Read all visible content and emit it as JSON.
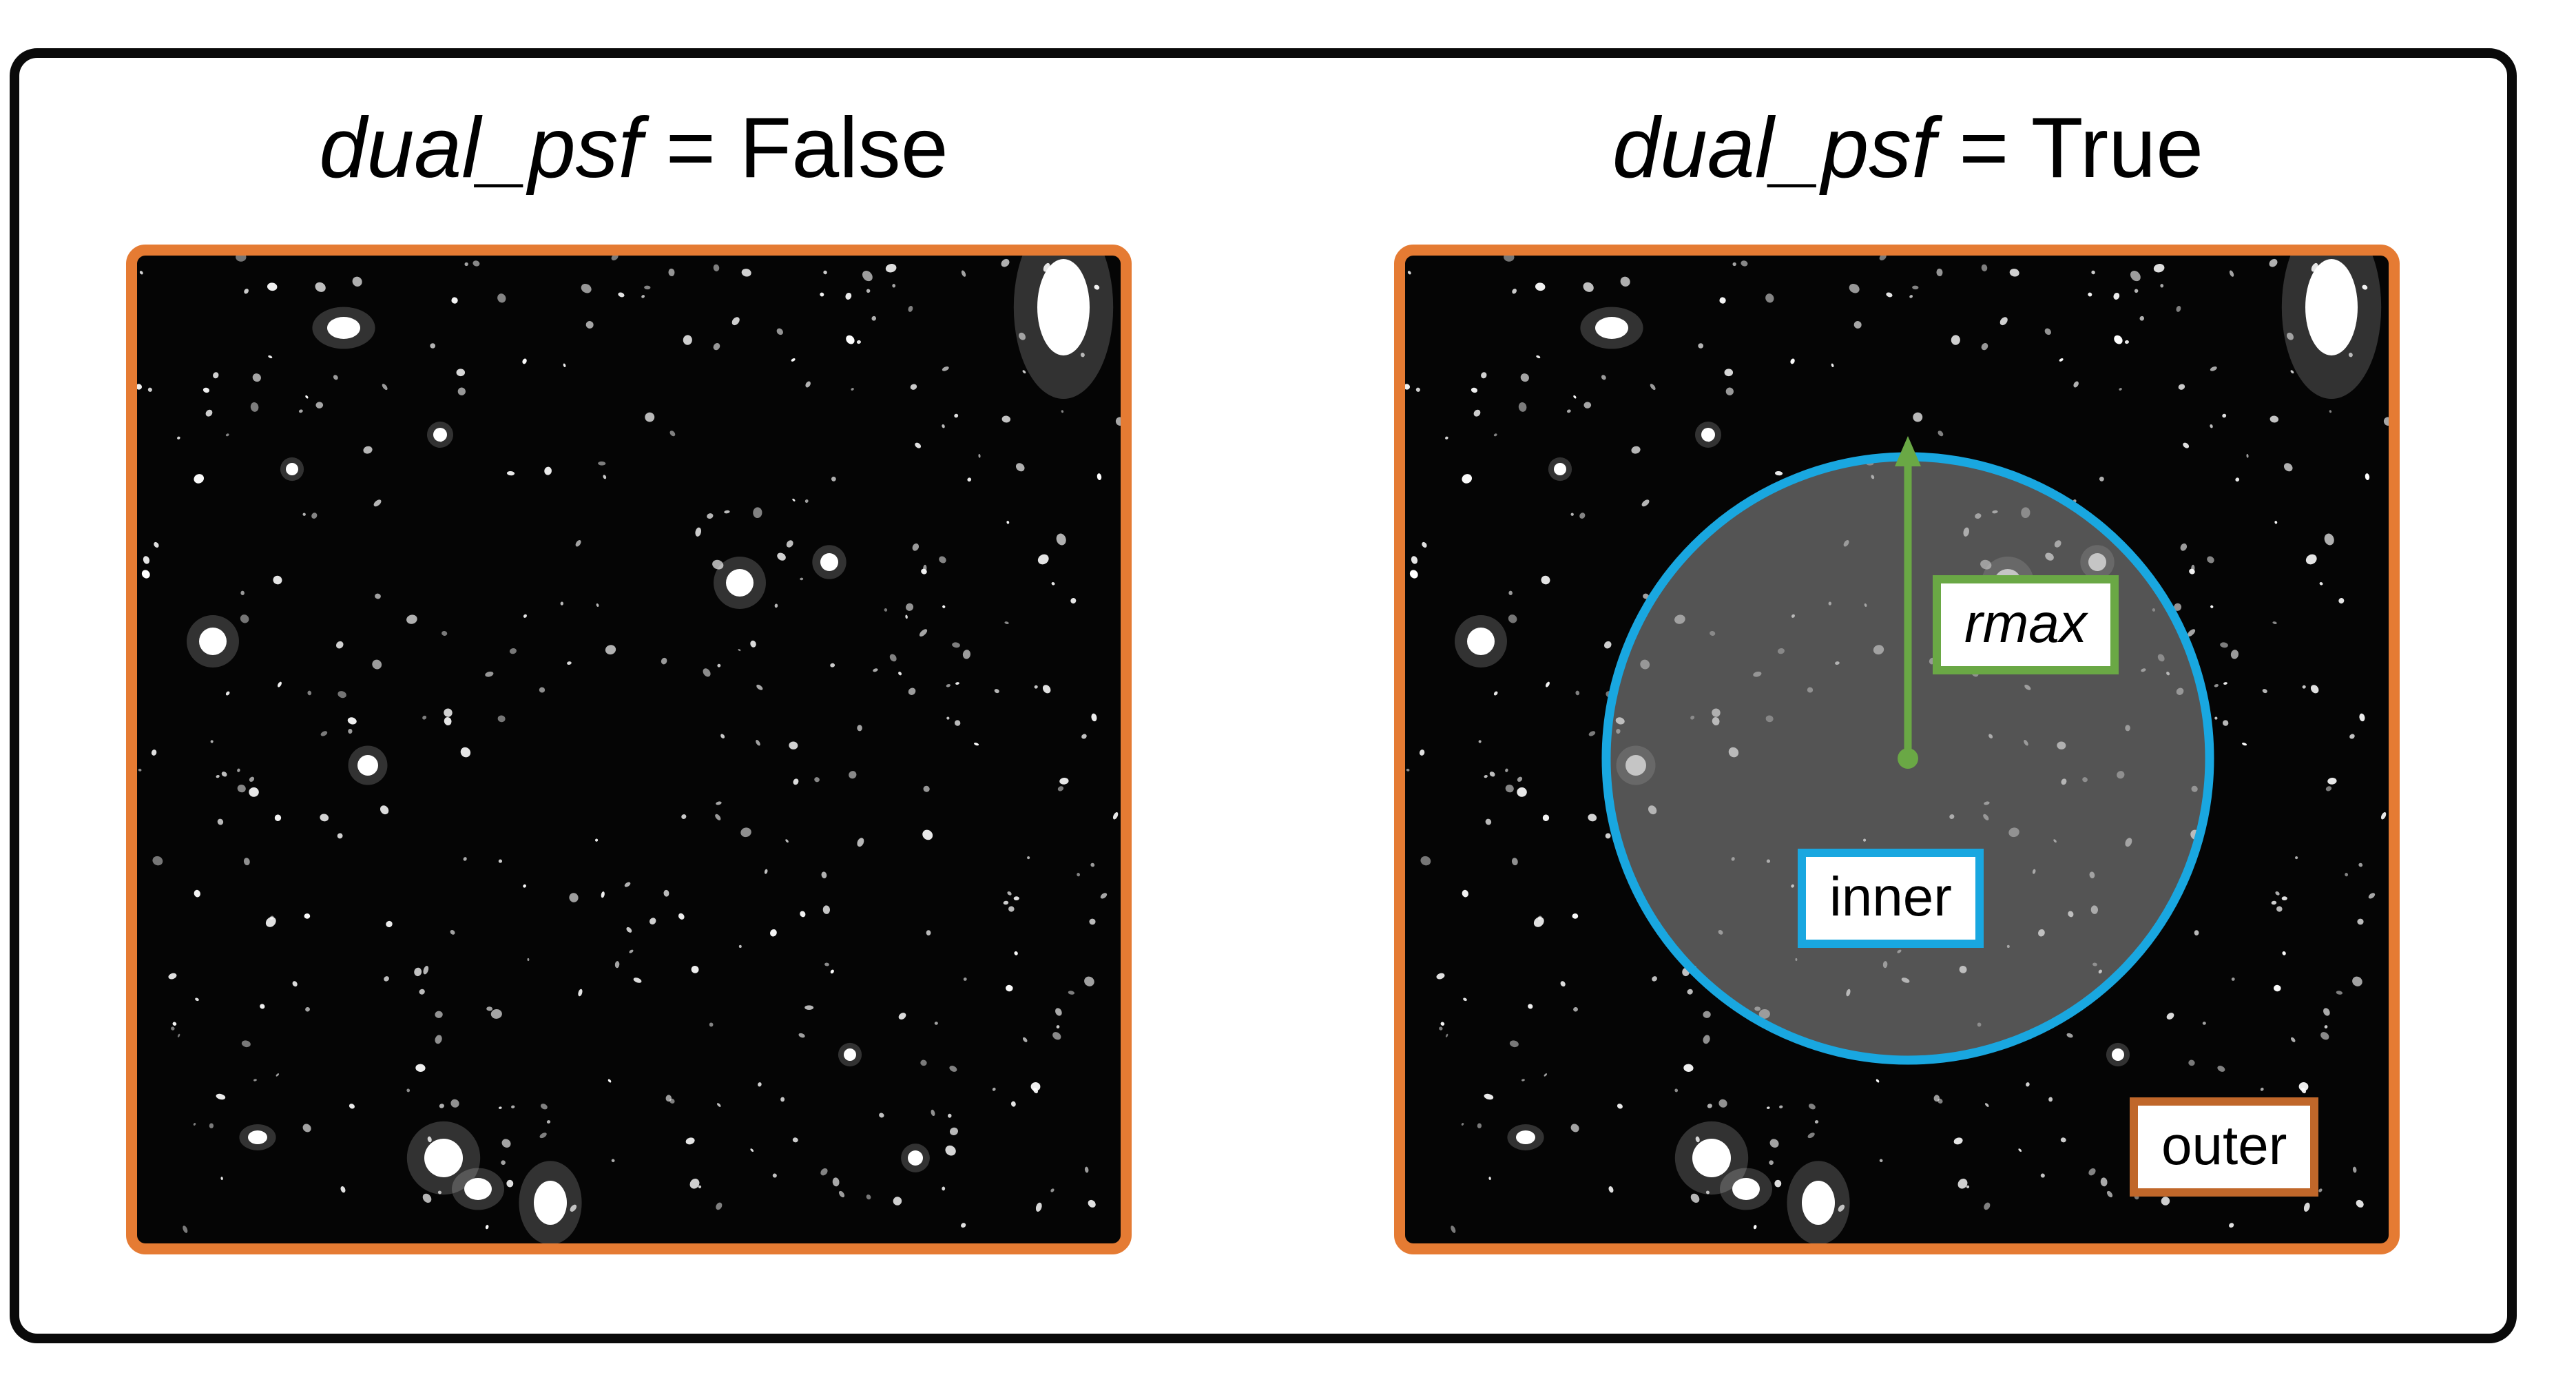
{
  "titles": {
    "left": {
      "keyword": "dual_psf",
      "suffix": " = False"
    },
    "right": {
      "keyword": "dual_psf",
      "suffix": " = True"
    }
  },
  "labels": {
    "rmax": "rmax",
    "inner": "inner",
    "outer": "outer"
  },
  "colors": {
    "panel_border": "#e57b33",
    "inner_circle": "#19a7e0",
    "rmax_arrow": "#6aa845",
    "outer_label_border": "#c0672a",
    "frame": "#0a0a0a"
  }
}
